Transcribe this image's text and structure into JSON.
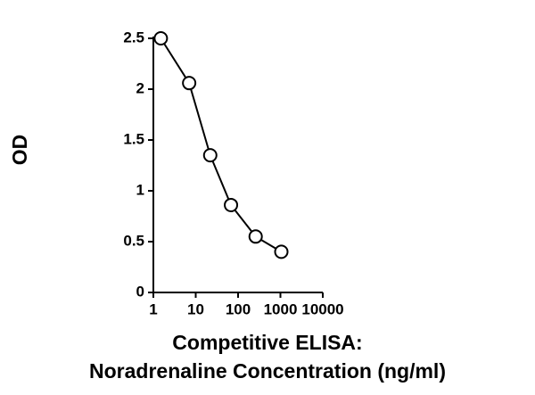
{
  "chart_data": {
    "type": "line",
    "x_label": [
      "Competitive ELISA:",
      "Noradrenaline Concentration (ng/ml)"
    ],
    "y_label": "OD",
    "x": [
      1.5,
      7,
      22,
      68,
      260,
      1050
    ],
    "series": [
      {
        "color": "#000000",
        "values": [
          2.5,
          2.06,
          1.35,
          0.86,
          0.55,
          0.4
        ]
      }
    ],
    "xscale": "log",
    "xlim": [
      1,
      10000
    ],
    "xticks": [
      1,
      10,
      100,
      1000,
      10000
    ],
    "ylim": [
      0,
      2.5
    ],
    "yticks": [
      0,
      0.5,
      1,
      1.5,
      2,
      2.5
    ],
    "grid": false
  }
}
